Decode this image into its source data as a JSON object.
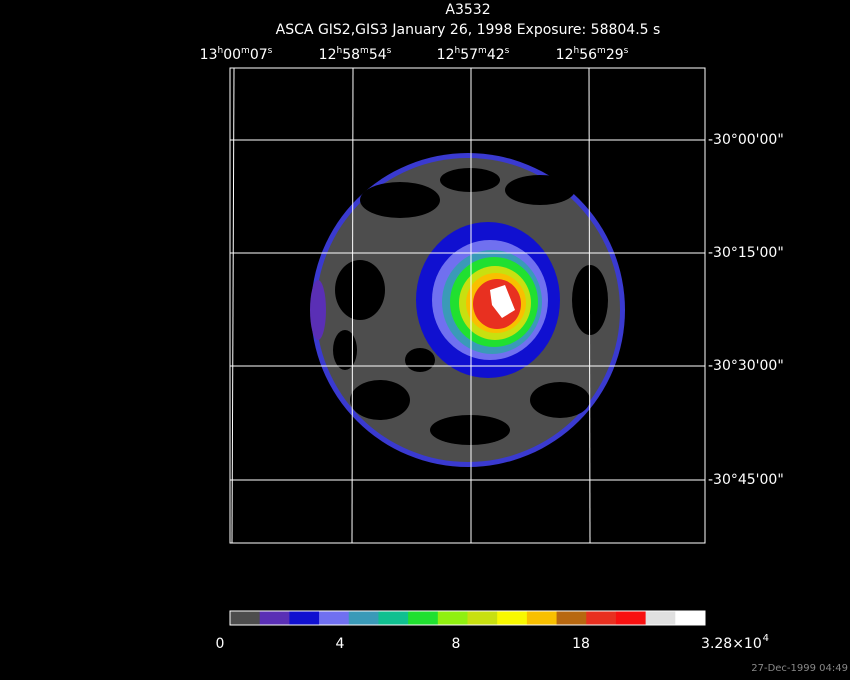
{
  "header": {
    "title": "A3532",
    "subtitle": "ASCA GIS2,GIS3 January 26, 1998 Exposure: 58804.5 s"
  },
  "ra_labels": [
    "13h00m07s",
    "12h58m54s",
    "12h57m42s",
    "12h56m29s"
  ],
  "dec_labels": [
    "-30°00'00\"",
    "-30°15'00\"",
    "-30°30'00\"",
    "-30°45'00\""
  ],
  "colorbar": {
    "colors": [
      "#4d4d4d",
      "#5a2fb5",
      "#1010d0",
      "#7070f0",
      "#3a9ab8",
      "#10c090",
      "#20e030",
      "#90f010",
      "#c8e010",
      "#f8f800",
      "#f8c000",
      "#b86810",
      "#e83020",
      "#f81010",
      "#e0e0e0",
      "#ffffff"
    ],
    "labels": [
      "0",
      "4",
      "8",
      "18",
      "3.28×10^4"
    ]
  },
  "timestamp": "27-Dec-1999 04:49"
}
